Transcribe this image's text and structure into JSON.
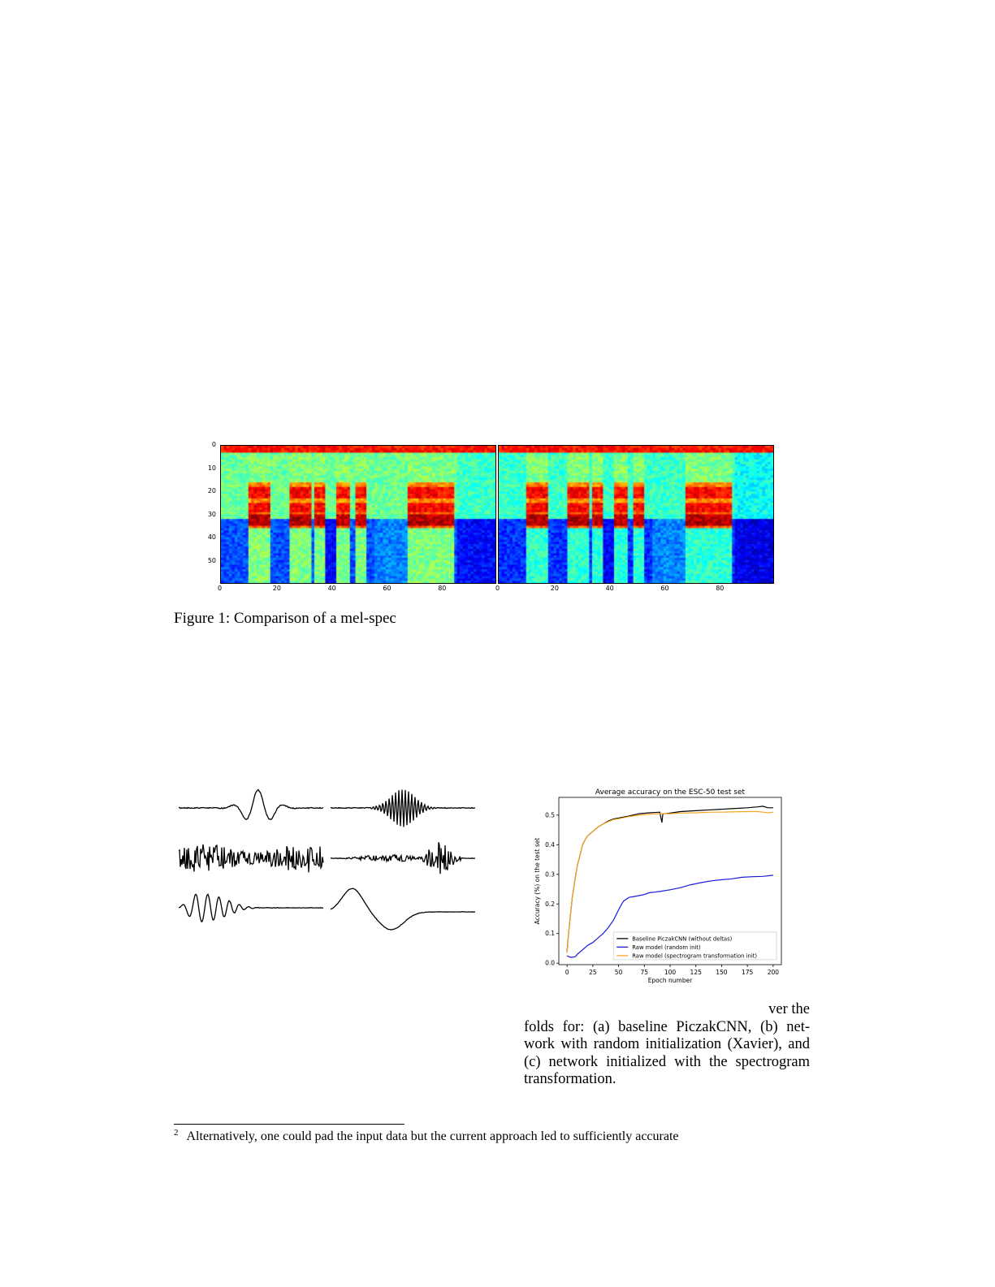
{
  "figure1": {
    "caption": "Figure 1: Comparison of a mel-spec",
    "x_ticks": [
      "0",
      "20",
      "40",
      "60",
      "80"
    ],
    "y_ticks": [
      "0",
      "10",
      "20",
      "30",
      "40",
      "50"
    ],
    "colormap": "jet"
  },
  "waveforms": {
    "panels": [
      "gabor-low",
      "gabor-high",
      "noise",
      "bursts",
      "chirp",
      "slow-wave"
    ]
  },
  "chart_data": {
    "type": "line",
    "title": "Average accuracy on the ESC-50 test set",
    "xlabel": "Epoch number",
    "ylabel": "Accuracy (%) on the test set",
    "xlim": [
      -8,
      208
    ],
    "ylim": [
      -0.005,
      0.56
    ],
    "x_ticks": [
      0,
      25,
      50,
      75,
      100,
      125,
      150,
      175,
      200
    ],
    "y_ticks": [
      0.0,
      0.1,
      0.2,
      0.3,
      0.4,
      0.5
    ],
    "x_tick_labels": [
      "0",
      "25",
      "50",
      "75",
      "100",
      "125",
      "150",
      "175",
      "200"
    ],
    "y_tick_labels": [
      "0.0",
      "0.1",
      "0.2",
      "0.3",
      "0.4",
      "0.5"
    ],
    "grid": false,
    "legend_position": "lower-right",
    "series": [
      {
        "name": "Baseline PiczakCNN (without deltas)",
        "color": "#000000",
        "x": [
          0,
          2,
          5,
          8,
          10,
          13,
          15,
          18,
          20,
          25,
          30,
          35,
          40,
          45,
          50,
          60,
          70,
          80,
          90,
          92,
          93,
          95,
          100,
          110,
          125,
          140,
          150,
          160,
          175,
          185,
          190,
          195,
          200
        ],
        "y": [
          0.04,
          0.12,
          0.22,
          0.29,
          0.33,
          0.37,
          0.4,
          0.42,
          0.43,
          0.445,
          0.46,
          0.47,
          0.48,
          0.487,
          0.49,
          0.497,
          0.505,
          0.508,
          0.51,
          0.475,
          0.505,
          0.505,
          0.507,
          0.512,
          0.515,
          0.518,
          0.52,
          0.522,
          0.525,
          0.528,
          0.53,
          0.525,
          0.525
        ]
      },
      {
        "name": "Raw model (random init)",
        "color": "#1a1adb",
        "x": [
          0,
          3,
          5,
          8,
          10,
          15,
          20,
          25,
          30,
          35,
          40,
          45,
          50,
          53,
          55,
          60,
          65,
          70,
          75,
          80,
          85,
          90,
          100,
          110,
          120,
          130,
          140,
          150,
          160,
          170,
          180,
          190,
          200
        ],
        "y": [
          0.025,
          0.02,
          0.02,
          0.022,
          0.03,
          0.045,
          0.06,
          0.07,
          0.085,
          0.1,
          0.12,
          0.145,
          0.18,
          0.2,
          0.21,
          0.222,
          0.225,
          0.228,
          0.232,
          0.238,
          0.24,
          0.242,
          0.248,
          0.255,
          0.265,
          0.272,
          0.278,
          0.282,
          0.285,
          0.29,
          0.292,
          0.293,
          0.297
        ]
      },
      {
        "name": "Raw model (spectrogram transformation init)",
        "color": "#f5a623",
        "x": [
          0,
          2,
          5,
          8,
          10,
          13,
          15,
          18,
          20,
          25,
          30,
          35,
          40,
          45,
          50,
          60,
          70,
          80,
          90,
          100,
          110,
          125,
          140,
          150,
          160,
          175,
          185,
          190,
          195,
          200
        ],
        "y": [
          0.035,
          0.12,
          0.22,
          0.29,
          0.33,
          0.37,
          0.4,
          0.42,
          0.43,
          0.445,
          0.46,
          0.47,
          0.478,
          0.485,
          0.488,
          0.495,
          0.5,
          0.503,
          0.505,
          0.505,
          0.507,
          0.508,
          0.51,
          0.51,
          0.511,
          0.512,
          0.512,
          0.51,
          0.508,
          0.51
        ]
      }
    ]
  },
  "figure2_caption": {
    "line1": "ver the",
    "line2": "folds for: (a) baseline PiczakCNN, (b) net-",
    "line3": "work with random initialization (Xavier), and",
    "line4": "(c) network initialized with the spectrogram",
    "line5": "transformation."
  },
  "footnote": {
    "marker": "2",
    "text": "Alternatively, one could pad the input data but the current approach led to sufficiently accurate"
  }
}
